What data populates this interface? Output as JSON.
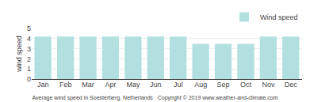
{
  "chart_data": {
    "type": "bar",
    "title": "Average wind speed in Soesterberg, Netherlands   Copyright © 2019 www.weather-and-climate.com",
    "categories": [
      "Jan",
      "Feb",
      "Mar",
      "Apr",
      "May",
      "Jun",
      "Jul",
      "Aug",
      "Sep",
      "Oct",
      "Nov",
      "Dec"
    ],
    "series": [
      {
        "name": "Wind speed",
        "color": "#b2e0e0",
        "values": [
          4.2,
          4.2,
          4.2,
          4.2,
          4.2,
          4.2,
          4.2,
          3.47,
          3.47,
          3.47,
          4.2,
          4.2
        ]
      }
    ],
    "ylabel": "wind speed",
    "ylim": [
      0,
      5
    ],
    "yticks": [
      0,
      1,
      2,
      3,
      4,
      5
    ],
    "grid": true,
    "legend": "upper right"
  }
}
